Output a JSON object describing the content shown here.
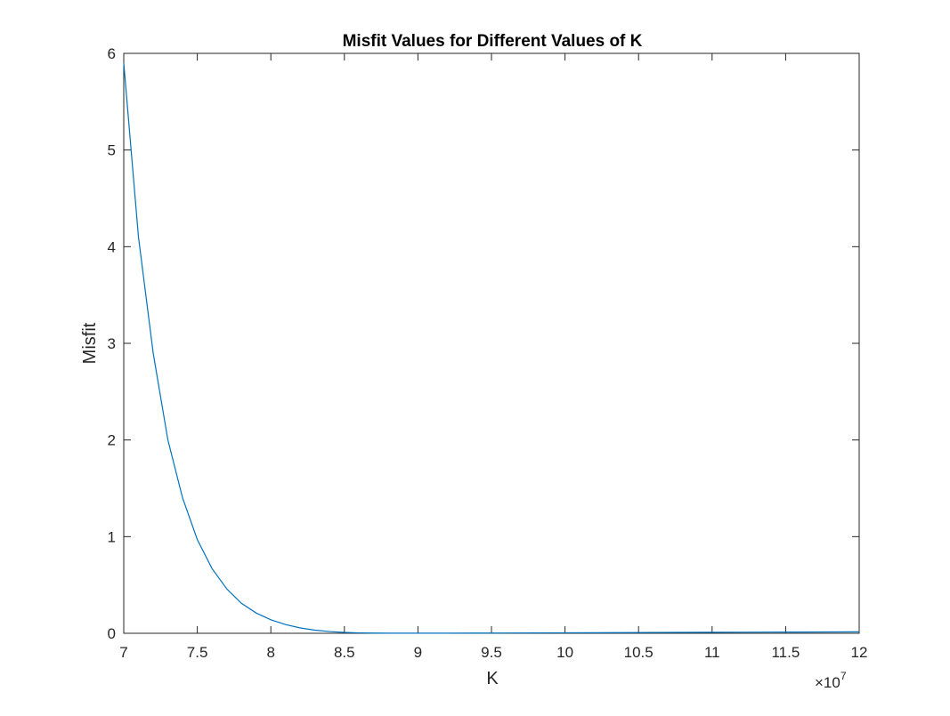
{
  "chart_data": {
    "type": "line",
    "title": "Misfit Values for Different Values of K",
    "xlabel": "K",
    "ylabel": "Misfit",
    "x_exponent_label": {
      "base": "×10",
      "power": "7"
    },
    "xlim": [
      70000000,
      120000000
    ],
    "ylim": [
      0,
      6
    ],
    "x_tick_values": [
      70000000,
      75000000,
      80000000,
      85000000,
      90000000,
      95000000,
      100000000,
      105000000,
      110000000,
      115000000,
      120000000
    ],
    "x_tick_labels": [
      "7",
      "7.5",
      "8",
      "8.5",
      "9",
      "9.5",
      "10",
      "10.5",
      "11",
      "11.5",
      "12"
    ],
    "y_tick_values": [
      0,
      1,
      2,
      3,
      4,
      5,
      6
    ],
    "y_tick_labels": [
      "0",
      "1",
      "2",
      "3",
      "4",
      "5",
      "6"
    ],
    "grid": false,
    "line_color": "#0072BD",
    "series": [
      {
        "x": [
          70000000,
          71000000,
          72000000,
          73000000,
          74000000,
          75000000,
          76000000,
          77000000,
          78000000,
          79000000,
          80000000,
          81000000,
          82000000,
          83000000,
          84000000,
          85000000,
          86000000,
          87000000,
          88000000,
          89000000,
          90000000,
          92000000,
          94000000,
          96000000,
          98000000,
          100000000,
          102000000,
          104000000,
          106000000,
          108000000,
          110000000,
          112000000,
          114000000,
          116000000,
          118000000,
          120000000
        ],
        "y": [
          5.9,
          4.1,
          2.9,
          2.0,
          1.4,
          0.97,
          0.67,
          0.46,
          0.31,
          0.21,
          0.14,
          0.09,
          0.055,
          0.032,
          0.018,
          0.009,
          0.004,
          0.002,
          0.001,
          0.0008,
          0.001,
          0.0015,
          0.002,
          0.003,
          0.004,
          0.005,
          0.006,
          0.007,
          0.008,
          0.009,
          0.01,
          0.011,
          0.012,
          0.013,
          0.014,
          0.015
        ]
      }
    ]
  }
}
